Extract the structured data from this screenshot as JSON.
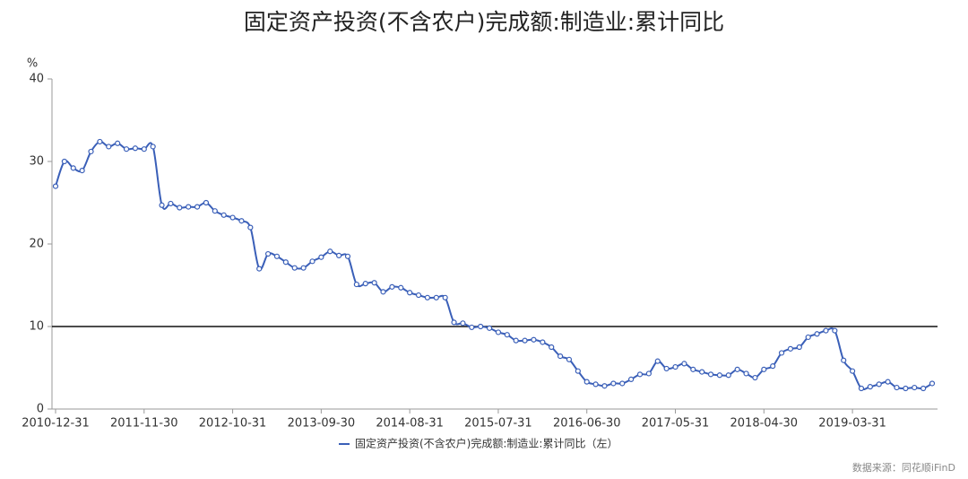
{
  "chart_data": {
    "type": "line",
    "title": "固定资产投资(不含农户)完成额:制造业:累计同比",
    "y_unit": "%",
    "source": "数据来源：同花顺iFinD",
    "categories": [
      "2010-12-31",
      null,
      null,
      null,
      null,
      null,
      null,
      null,
      null,
      null,
      "2011-11-30",
      null,
      null,
      null,
      null,
      null,
      null,
      null,
      null,
      null,
      "2012-10-31",
      null,
      null,
      null,
      null,
      null,
      null,
      null,
      null,
      null,
      "2013-09-30",
      null,
      null,
      null,
      null,
      null,
      null,
      null,
      null,
      null,
      "2014-08-31",
      null,
      null,
      null,
      null,
      null,
      null,
      null,
      null,
      null,
      "2015-07-31",
      null,
      null,
      null,
      null,
      null,
      null,
      null,
      null,
      null,
      "2016-06-30",
      null,
      null,
      null,
      null,
      null,
      null,
      null,
      null,
      null,
      "2017-05-31",
      null,
      null,
      null,
      null,
      null,
      null,
      null,
      null,
      null,
      "2018-04-30",
      null,
      null,
      null,
      null,
      null,
      null,
      null,
      null,
      null,
      "2019-03-31",
      null,
      null,
      null,
      null,
      null,
      null,
      null,
      null,
      null
    ],
    "series": [
      {
        "name": "固定资产投资(不含农户)完成额:制造业:累计同比（左）",
        "color": "#3a5fb8",
        "values": [
          27.0,
          30.0,
          29.2,
          28.9,
          31.2,
          32.4,
          31.8,
          32.2,
          31.5,
          31.6,
          31.5,
          31.8,
          24.7,
          24.9,
          24.4,
          24.5,
          24.5,
          25.0,
          24.0,
          23.5,
          23.2,
          22.8,
          22.0,
          17.0,
          18.8,
          18.5,
          17.8,
          17.1,
          17.1,
          17.9,
          18.4,
          19.1,
          18.6,
          18.5,
          15.1,
          15.2,
          15.3,
          14.2,
          14.8,
          14.7,
          14.1,
          13.8,
          13.5,
          13.5,
          13.5,
          10.5,
          10.4,
          9.9,
          10.0,
          9.8,
          9.3,
          9.0,
          8.3,
          8.3,
          8.4,
          8.1,
          7.5,
          6.4,
          6.0,
          4.6,
          3.3,
          3.0,
          2.8,
          3.1,
          3.1,
          3.6,
          4.2,
          4.3,
          5.8,
          4.9,
          5.1,
          5.5,
          4.8,
          4.5,
          4.2,
          4.1,
          4.1,
          4.8,
          4.3,
          3.8,
          4.8,
          5.2,
          6.8,
          7.3,
          7.5,
          8.7,
          9.1,
          9.5,
          9.5,
          5.9,
          4.6,
          2.5,
          2.7,
          3.0,
          3.3,
          2.6,
          2.5,
          2.6,
          2.5,
          3.1
        ]
      }
    ],
    "reference_line": 10,
    "ylim": [
      0,
      40
    ],
    "yticks": [
      0,
      10,
      20,
      30,
      40
    ],
    "grid": false,
    "legend": "bottom"
  }
}
